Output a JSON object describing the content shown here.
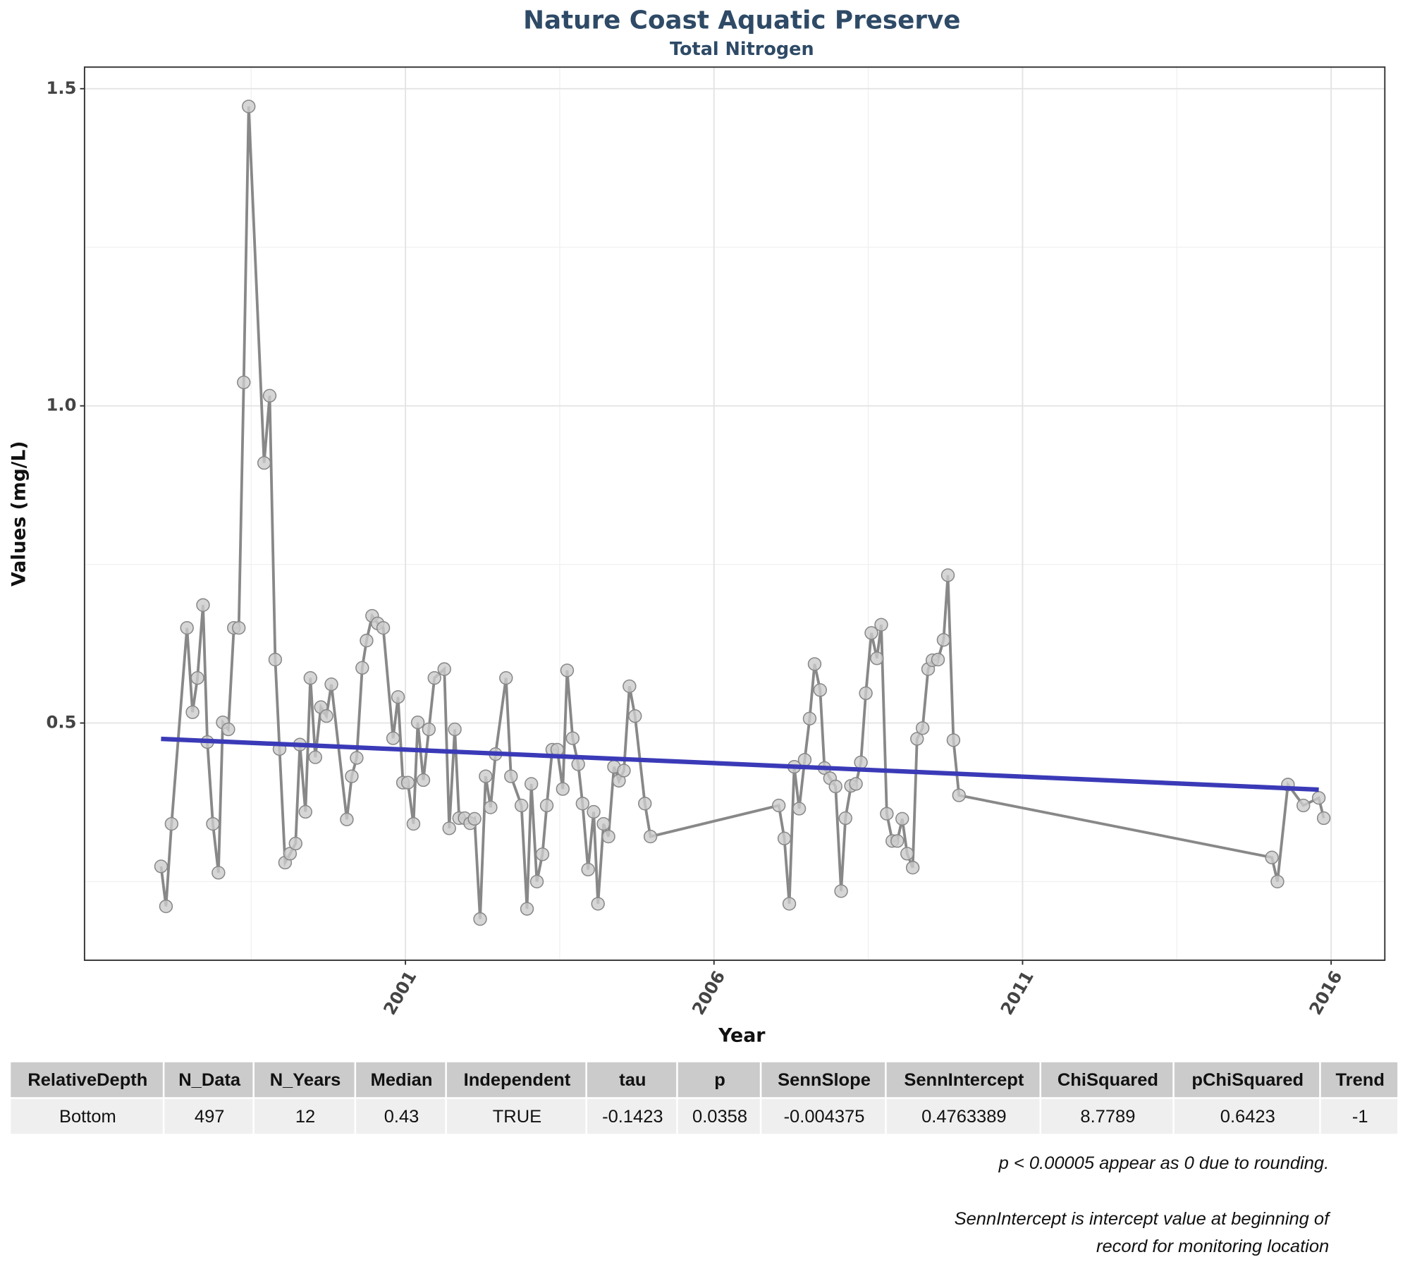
{
  "chart_data": {
    "type": "line",
    "title": "Nature Coast Aquatic Preserve",
    "subtitle": "Total Nitrogen",
    "x_label": "Year",
    "y_label": "Values (mg/L)",
    "xlim": [
      1995.8,
      2016.87
    ],
    "ylim": [
      0.126,
      1.534
    ],
    "xticks": [
      2001,
      2006,
      2011,
      2016
    ],
    "yticks": [
      0.5,
      {
        "value": 1,
        "label": "1.0"
      },
      1.5
    ],
    "x_minor_grid": [
      1998.5,
      2003.5,
      2008.5,
      2013.5
    ],
    "y_minor_grid": [
      0.25,
      0.75,
      1.25
    ],
    "grid": true,
    "series": [
      {
        "color": "#888888",
        "marker_fill": "#cccccc",
        "x": [
          1997.04,
          1997.12,
          1997.21,
          1997.46,
          1997.55,
          1997.63,
          1997.72,
          1997.79,
          1997.88,
          1997.97,
          1998.04,
          1998.13,
          1998.22,
          1998.3,
          1998.38,
          1998.46,
          1998.71,
          1998.8,
          1998.89,
          1998.96,
          1999.05,
          1999.13,
          1999.22,
          1999.29,
          1999.38,
          1999.46,
          1999.54,
          1999.63,
          1999.72,
          1999.8,
          2000.05,
          2000.13,
          2000.21,
          2000.3,
          2000.37,
          2000.46,
          2000.55,
          2000.64,
          2000.8,
          2000.88,
          2000.96,
          2001.04,
          2001.13,
          2001.2,
          2001.29,
          2001.38,
          2001.47,
          2001.63,
          2001.71,
          2001.8,
          2001.87,
          2001.96,
          2002.05,
          2002.12,
          2002.21,
          2002.3,
          2002.38,
          2002.46,
          2002.63,
          2002.71,
          2002.88,
          2002.97,
          2003.04,
          2003.13,
          2003.22,
          2003.29,
          2003.38,
          2003.46,
          2003.55,
          2003.62,
          2003.71,
          2003.8,
          2003.87,
          2003.96,
          2004.05,
          2004.12,
          2004.21,
          2004.29,
          2004.38,
          2004.46,
          2004.54,
          2004.63,
          2004.72,
          2004.88,
          2004.97,
          2007.05,
          2007.14,
          2007.22,
          2007.3,
          2007.38,
          2007.47,
          2007.55,
          2007.63,
          2007.72,
          2007.79,
          2007.88,
          2007.97,
          2008.06,
          2008.13,
          2008.22,
          2008.3,
          2008.38,
          2008.46,
          2008.55,
          2008.64,
          2008.71,
          2008.8,
          2008.89,
          2008.97,
          2009.05,
          2009.13,
          2009.22,
          2009.29,
          2009.38,
          2009.47,
          2009.54,
          2009.63,
          2009.72,
          2009.79,
          2009.88,
          2009.97,
          2015.04,
          2015.13,
          2015.3,
          2015.55,
          2015.8,
          2015.88
        ],
        "values": [
          0.274,
          0.211,
          0.341,
          0.65,
          0.517,
          0.571,
          0.686,
          0.47,
          0.341,
          0.264,
          0.501,
          0.49,
          0.65,
          0.65,
          1.037,
          1.472,
          0.91,
          1.016,
          0.6,
          0.459,
          0.28,
          0.294,
          0.31,
          0.466,
          0.36,
          0.571,
          0.446,
          0.525,
          0.511,
          0.561,
          0.348,
          0.416,
          0.445,
          0.587,
          0.63,
          0.669,
          0.657,
          0.65,
          0.476,
          0.541,
          0.406,
          0.406,
          0.341,
          0.501,
          0.41,
          0.49,
          0.571,
          0.585,
          0.334,
          0.49,
          0.35,
          0.35,
          0.342,
          0.349,
          0.191,
          0.416,
          0.367,
          0.451,
          0.571,
          0.416,
          0.37,
          0.207,
          0.404,
          0.25,
          0.293,
          0.37,
          0.458,
          0.458,
          0.396,
          0.583,
          0.476,
          0.435,
          0.373,
          0.269,
          0.36,
          0.215,
          0.341,
          0.321,
          0.431,
          0.409,
          0.425,
          0.558,
          0.511,
          0.373,
          0.321,
          0.37,
          0.318,
          0.215,
          0.431,
          0.365,
          0.442,
          0.507,
          0.593,
          0.552,
          0.429,
          0.413,
          0.4,
          0.235,
          0.35,
          0.401,
          0.404,
          0.438,
          0.547,
          0.642,
          0.602,
          0.655,
          0.357,
          0.314,
          0.314,
          0.349,
          0.294,
          0.272,
          0.475,
          0.492,
          0.585,
          0.599,
          0.6,
          0.631,
          0.733,
          0.473,
          0.386,
          0.288,
          0.25,
          0.403,
          0.37,
          0.382,
          0.35
        ]
      }
    ],
    "trend_line": {
      "color": "#3a3ab8",
      "x": [
        1997.04,
        2015.8
      ],
      "values": [
        0.475,
        0.395
      ]
    }
  },
  "table": {
    "header": [
      "RelativeDepth",
      "N_Data",
      "N_Years",
      "Median",
      "Independent",
      "tau",
      "p",
      "SennSlope",
      "SennIntercept",
      "ChiSquared",
      "pChiSquared",
      "Trend"
    ],
    "rows": [
      [
        "Bottom",
        "497",
        "12",
        "0.43",
        "TRUE",
        "-0.1423",
        "0.0358",
        "-0.004375",
        "0.4763389",
        "8.7789",
        "0.6423",
        "-1"
      ]
    ]
  },
  "notes": [
    "p < 0.00005 appear as 0 due to rounding.",
    "SennIntercept is intercept value at beginning of",
    "record for monitoring location"
  ]
}
